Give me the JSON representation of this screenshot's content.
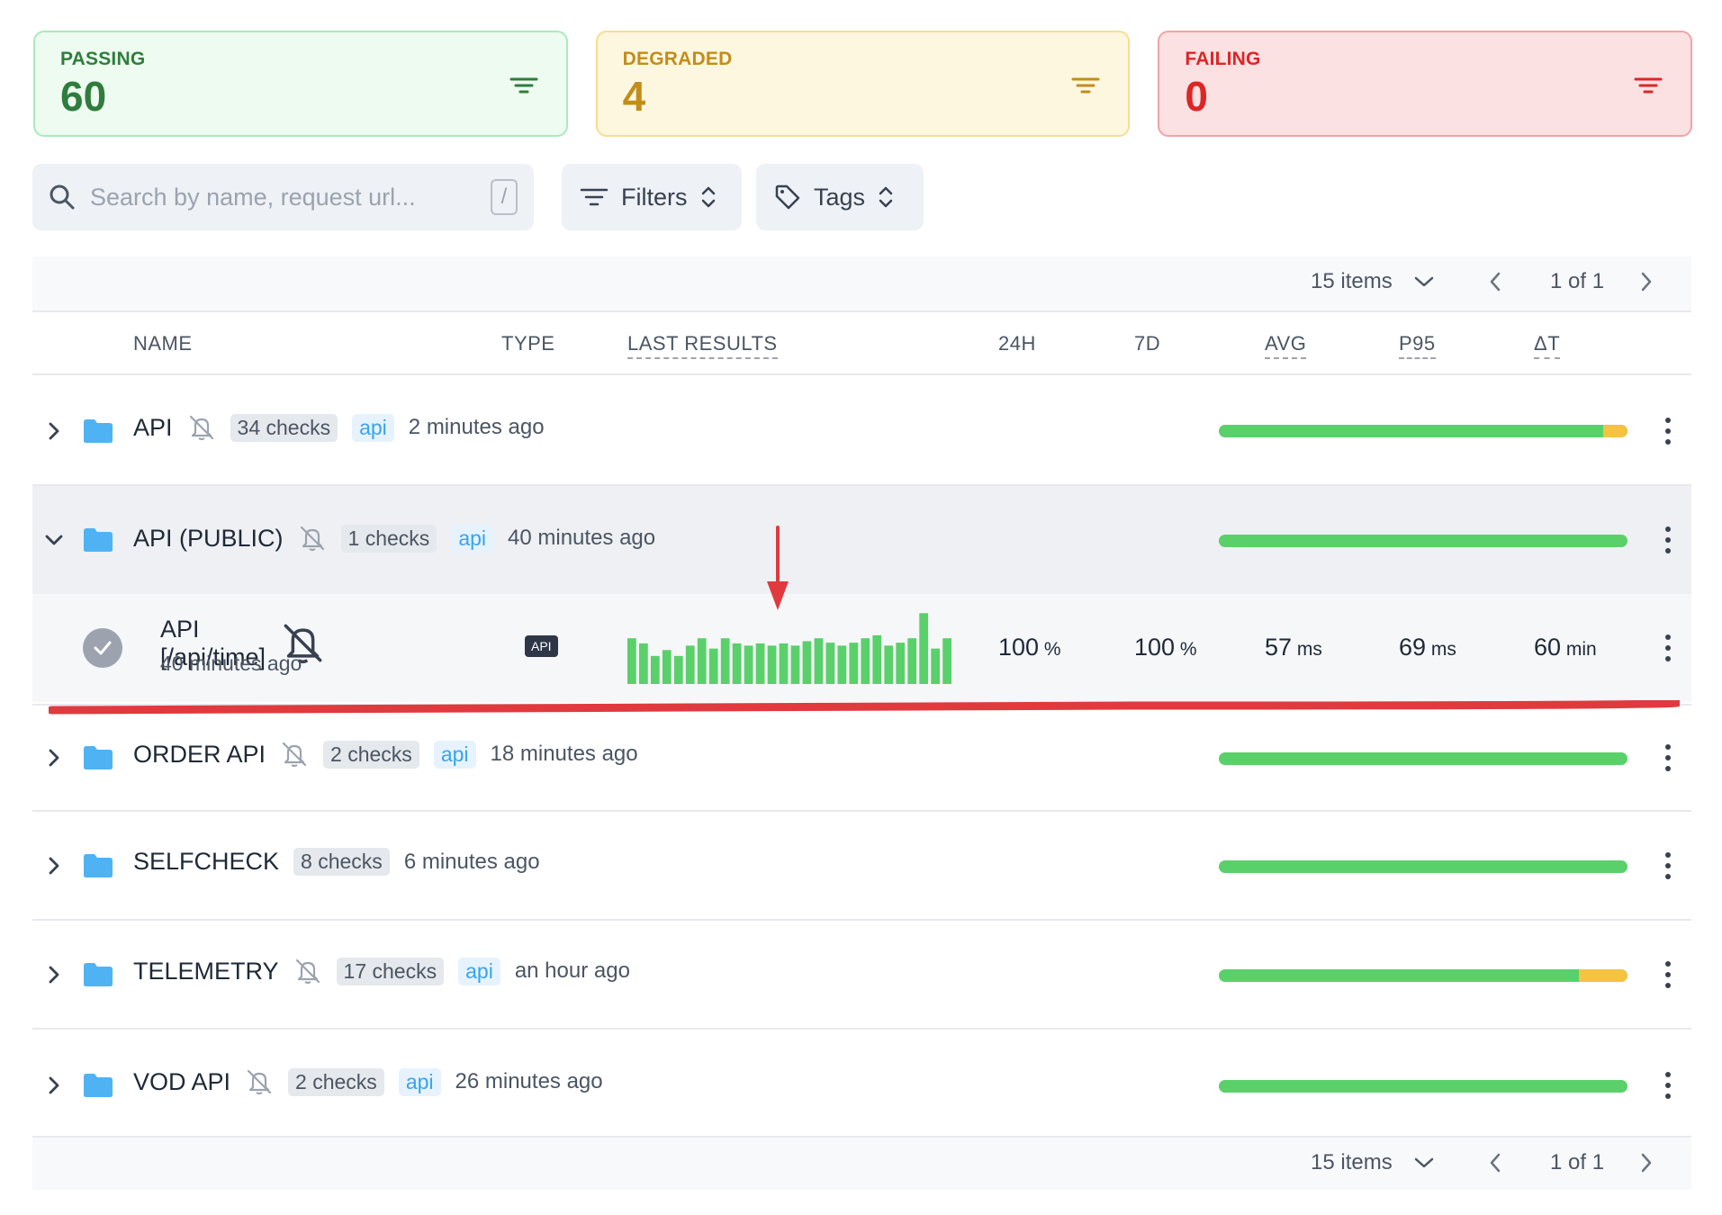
{
  "cards": [
    {
      "label": "PASSING",
      "count": "60"
    },
    {
      "label": "DEGRADED",
      "count": "4"
    },
    {
      "label": "FAILING",
      "count": "0"
    }
  ],
  "toolbar": {
    "search_placeholder": "Search by name, request url...",
    "search_shortcut": "/",
    "filters_label": "Filters",
    "tags_label": "Tags"
  },
  "pager": {
    "items_label": "15 items",
    "page_label": "1 of 1"
  },
  "columns": {
    "name": "NAME",
    "type": "TYPE",
    "last_results": "LAST RESULTS",
    "h24": "24H",
    "d7": "7D",
    "avg": "AVG",
    "p95": "P95",
    "dt": "ΔT"
  },
  "groups": [
    {
      "name": "API",
      "checks": "34 checks",
      "tag": "api",
      "ago": "2 minutes ago",
      "passing_share": 0.94
    },
    {
      "name": "API (PUBLIC)",
      "checks": "1 checks",
      "tag": "api",
      "ago": "40 minutes ago",
      "passing_share": 1.0
    },
    {
      "name": "ORDER API",
      "checks": "2 checks",
      "tag": "api",
      "ago": "18 minutes ago",
      "passing_share": 1.0
    },
    {
      "name": "SELFCHECK",
      "checks": "8 checks",
      "tag": "",
      "ago": "6 minutes ago",
      "passing_share": 1.0
    },
    {
      "name": "TELEMETRY",
      "checks": "17 checks",
      "tag": "api",
      "ago": "an hour ago",
      "passing_share": 0.88
    },
    {
      "name": "VOD API",
      "checks": "2 checks",
      "tag": "api",
      "ago": "26 minutes ago",
      "passing_share": 1.0
    }
  ],
  "check": {
    "name": "API [/api/time]",
    "ago": "40 minutes ago",
    "type_badge": "API",
    "last_results": [
      0.62,
      0.55,
      0.38,
      0.46,
      0.38,
      0.52,
      0.62,
      0.48,
      0.62,
      0.55,
      0.52,
      0.55,
      0.52,
      0.55,
      0.52,
      0.58,
      0.62,
      0.56,
      0.52,
      0.56,
      0.62,
      0.66,
      0.52,
      0.56,
      0.62,
      0.96,
      0.48,
      0.62
    ],
    "h24": "100",
    "h24_unit": "%",
    "d7": "100",
    "d7_unit": "%",
    "avg": "57",
    "avg_unit": "ms",
    "p95": "69",
    "p95_unit": "ms",
    "dt": "60",
    "dt_unit": "min"
  },
  "colors": {
    "passing": "#5ad06a",
    "degraded": "#f5c242",
    "failing": "#dc2626",
    "annotation": "#e03a3e"
  }
}
